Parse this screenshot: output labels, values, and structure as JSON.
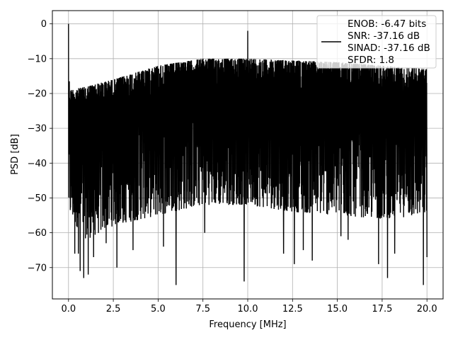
{
  "chart_data": {
    "type": "line",
    "xlabel": "Frequency [MHz]",
    "ylabel": "PSD [dB]",
    "xlim": [
      -0.9,
      20.9
    ],
    "ylim": [
      -79,
      3.8
    ],
    "xticks": [
      0.0,
      2.5,
      5.0,
      7.5,
      10.0,
      12.5,
      15.0,
      17.5,
      20.0
    ],
    "xtick_labels": [
      "0.0",
      "2.5",
      "5.0",
      "7.5",
      "10.0",
      "12.5",
      "15.0",
      "17.5",
      "20.0"
    ],
    "yticks": [
      0,
      -10,
      -20,
      -30,
      -40,
      -50,
      -60,
      -70
    ],
    "ytick_labels": [
      "0",
      "−10",
      "−20",
      "−30",
      "−40",
      "−50",
      "−60",
      "−70"
    ],
    "grid": true,
    "legend_position": "top-right",
    "legend": {
      "lines": [
        "ENOB: -6.47 bits",
        "SNR: -37.16 dB",
        "SINAD: -37.16 dB",
        "SFDR: 1.8"
      ]
    },
    "series": [
      {
        "color": "#000000",
        "x_range": [
          0,
          20
        ],
        "peaks": [
          {
            "x": 0.0,
            "y": 0
          },
          {
            "x": 10.0,
            "y": -2
          }
        ],
        "upper_envelope": [
          {
            "x": 0.0,
            "y": -14
          },
          {
            "x": 0.1,
            "y": -19
          },
          {
            "x": 1.0,
            "y": -18
          },
          {
            "x": 2.5,
            "y": -16
          },
          {
            "x": 5.0,
            "y": -12
          },
          {
            "x": 7.5,
            "y": -10
          },
          {
            "x": 10.0,
            "y": -10
          },
          {
            "x": 12.5,
            "y": -10.5
          },
          {
            "x": 15.0,
            "y": -11
          },
          {
            "x": 17.5,
            "y": -12
          },
          {
            "x": 20.0,
            "y": -13
          }
        ],
        "lower_envelope": [
          {
            "x": 0.0,
            "y": -55
          },
          {
            "x": 1.0,
            "y": -62
          },
          {
            "x": 2.5,
            "y": -58
          },
          {
            "x": 5.0,
            "y": -55
          },
          {
            "x": 7.5,
            "y": -52
          },
          {
            "x": 10.0,
            "y": -52
          },
          {
            "x": 12.5,
            "y": -54
          },
          {
            "x": 15.0,
            "y": -55
          },
          {
            "x": 17.5,
            "y": -56
          },
          {
            "x": 20.0,
            "y": -55
          }
        ],
        "deep_notches": [
          {
            "x": 0.35,
            "y": -66
          },
          {
            "x": 0.55,
            "y": -66
          },
          {
            "x": 0.65,
            "y": -71
          },
          {
            "x": 0.85,
            "y": -73
          },
          {
            "x": 1.1,
            "y": -72
          },
          {
            "x": 1.4,
            "y": -67
          },
          {
            "x": 2.1,
            "y": -63
          },
          {
            "x": 2.7,
            "y": -70
          },
          {
            "x": 3.6,
            "y": -65
          },
          {
            "x": 5.3,
            "y": -64
          },
          {
            "x": 6.0,
            "y": -75
          },
          {
            "x": 7.6,
            "y": -60
          },
          {
            "x": 9.8,
            "y": -74
          },
          {
            "x": 12.0,
            "y": -66
          },
          {
            "x": 12.6,
            "y": -69
          },
          {
            "x": 13.1,
            "y": -65
          },
          {
            "x": 13.6,
            "y": -68
          },
          {
            "x": 15.2,
            "y": -61
          },
          {
            "x": 15.6,
            "y": -62
          },
          {
            "x": 17.3,
            "y": -69
          },
          {
            "x": 17.8,
            "y": -73
          },
          {
            "x": 18.2,
            "y": -66
          },
          {
            "x": 19.8,
            "y": -75
          },
          {
            "x": 20.0,
            "y": -67
          }
        ]
      }
    ]
  }
}
